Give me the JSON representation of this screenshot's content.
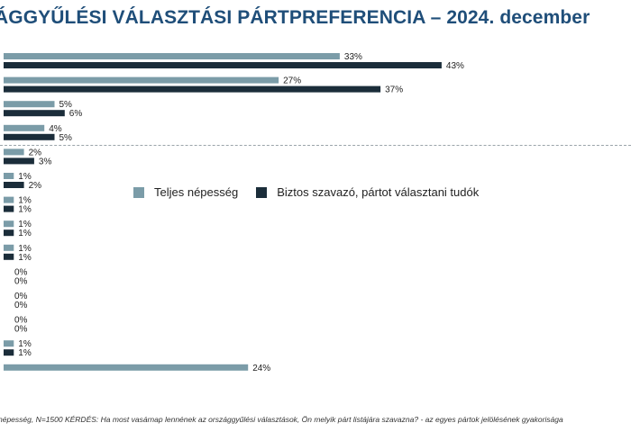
{
  "title": "ÁGGYŰLÉSI VÁLASZTÁSI PÁRTPREFERENCIA – 2024. december",
  "footnote": "népesség, N=1500  KÉRDÉS:  Ha most vasárnap lennének az országgyűlési választások, Ön melyik párt listájára szavazna? - az egyes pártok jelölésének gyakorisága",
  "colors": {
    "series1": "#7b9ca8",
    "series2": "#1b2d3a",
    "title": "#1f4e79"
  },
  "legend": {
    "series1_label": "Teljes népesség",
    "series2_label": "Biztos szavazó, pártot választani tudók"
  },
  "chart_data": {
    "type": "bar",
    "orientation": "horizontal",
    "title": "ÁGGYŰLÉSI VÁLASZTÁSI PÁRTPREFERENCIA – 2024. december",
    "value_suffix": "%",
    "series": [
      {
        "name": "Teljes népesség",
        "color": "#7b9ca8",
        "values": [
          33,
          27,
          5,
          4,
          2,
          1,
          1,
          1,
          1,
          0,
          0,
          0,
          1,
          24
        ]
      },
      {
        "name": "Biztos szavazó, pártot választani tudók",
        "color": "#1b2d3a",
        "values": [
          43,
          37,
          6,
          5,
          3,
          2,
          1,
          1,
          1,
          0,
          0,
          0,
          1,
          null
        ]
      }
    ]
  }
}
